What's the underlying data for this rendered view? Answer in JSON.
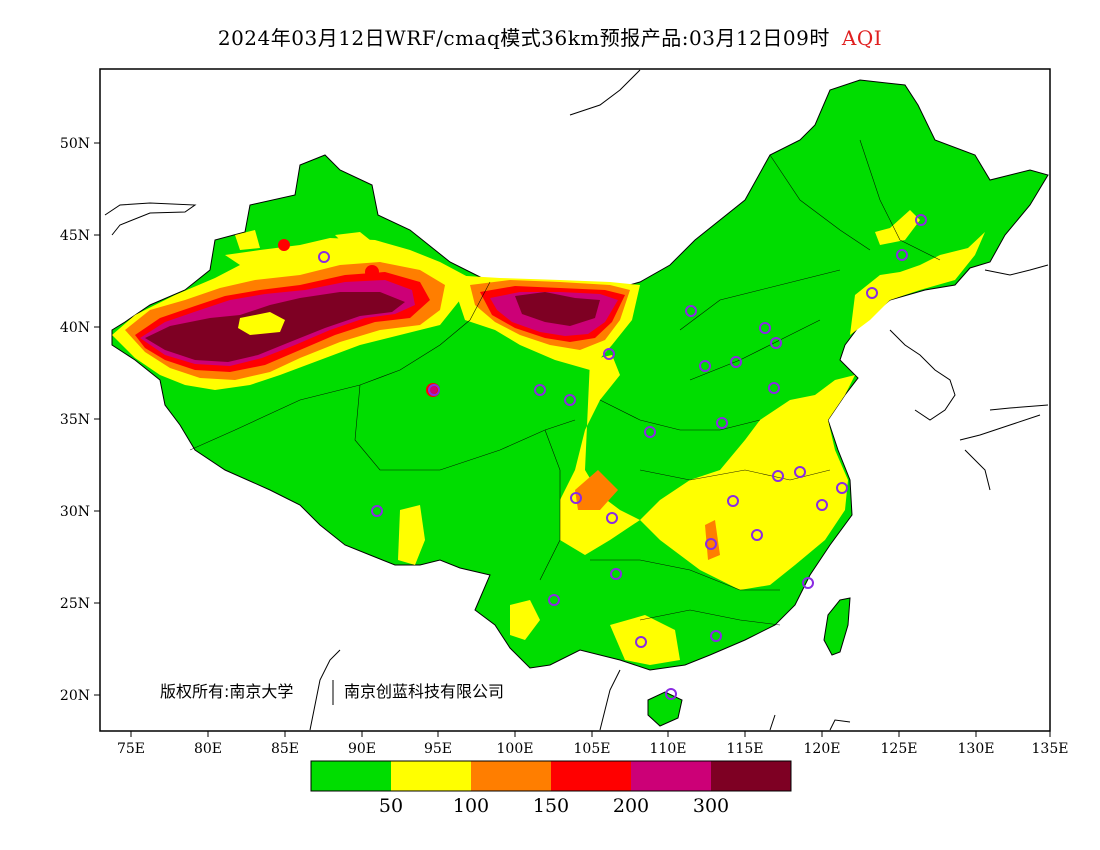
{
  "title": {
    "main": "2024年03月12日WRF/cmaq模式36km预报产品:03月12日09时",
    "variable": "AQI"
  },
  "axes": {
    "lon_ticks": [
      "75E",
      "80E",
      "85E",
      "90E",
      "95E",
      "100E",
      "105E",
      "110E",
      "115E",
      "120E",
      "125E",
      "130E",
      "135E"
    ],
    "lat_ticks": [
      "20N",
      "25N",
      "30N",
      "35N",
      "40N",
      "45N",
      "50N"
    ],
    "lon_range": [
      73,
      135
    ],
    "lat_range": [
      18,
      54
    ]
  },
  "copyright": {
    "text": "版权所有:南京大学",
    "org": "南京创蓝科技有限公司"
  },
  "legend": {
    "colors": [
      "#00dd00",
      "#ffff00",
      "#ff7e00",
      "#ff0000",
      "#cc0077",
      "#7e0023"
    ],
    "labels": [
      "50",
      "100",
      "150",
      "200",
      "300"
    ]
  },
  "colors": {
    "green": "#00dd00",
    "yellow": "#ffff00",
    "orange": "#ff7e00",
    "red": "#ff0000",
    "purple": "#cc0077",
    "maroon": "#7e0023",
    "station": "#8a2be2"
  }
}
